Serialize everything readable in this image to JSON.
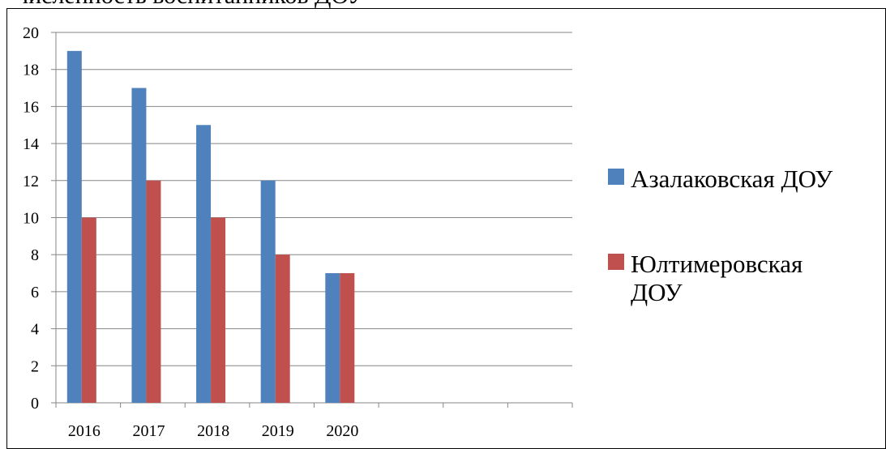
{
  "chart_data": {
    "type": "bar",
    "title": "численность воспитанников ДОУ",
    "categories": [
      "2016",
      "2017",
      "2018",
      "2019",
      "2020",
      "",
      "",
      ""
    ],
    "series": [
      {
        "name": "Азалаковская ДОУ",
        "color": "#4F81BD",
        "values": [
          19,
          17,
          15,
          12,
          7,
          null,
          null,
          null
        ]
      },
      {
        "name": "Юлтимеровская ДОУ",
        "color": "#C0504D",
        "values": [
          10,
          12,
          10,
          8,
          7,
          null,
          null,
          null
        ]
      }
    ],
    "y_ticks": [
      0,
      2,
      4,
      6,
      8,
      10,
      12,
      14,
      16,
      18,
      20
    ],
    "ylim": [
      0,
      20
    ],
    "grid": true,
    "legend": "right"
  }
}
